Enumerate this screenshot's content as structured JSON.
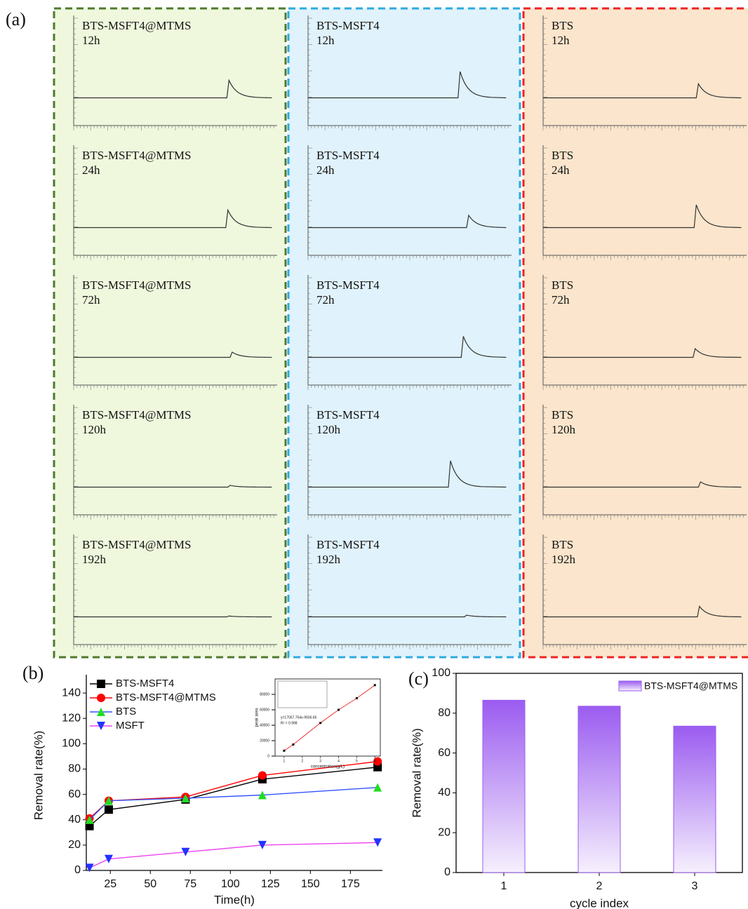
{
  "panel_labels": [
    "(a)",
    "(b)",
    "(c)"
  ],
  "panel_a": {
    "xlim": [
      0,
      19
    ],
    "ylim": [
      0,
      50
    ],
    "baseline": 5,
    "columns": [
      {
        "name": "BTS-MSFT4@MTMS",
        "color": "#4f7a2e",
        "background": "#eff8dd",
        "rows": [
          {
            "time": "12h",
            "peak_time": 14.5,
            "peak_height": 10
          },
          {
            "time": "24h",
            "peak_time": 14.4,
            "peak_height": 10
          },
          {
            "time": "72h",
            "peak_time": 14.8,
            "peak_height": 3
          },
          {
            "time": "120h",
            "peak_time": 14.6,
            "peak_height": 1
          },
          {
            "time": "192h",
            "peak_time": 14.5,
            "peak_height": 0.5
          }
        ]
      },
      {
        "name": "BTS-MSFT4",
        "color": "#2eaadf",
        "background": "#e0f2fb",
        "rows": [
          {
            "time": "12h",
            "peak_time": 14.2,
            "peak_height": 15
          },
          {
            "time": "24h",
            "peak_time": 15.0,
            "peak_height": 7
          },
          {
            "time": "72h",
            "peak_time": 14.5,
            "peak_height": 12
          },
          {
            "time": "120h",
            "peak_time": 13.3,
            "peak_height": 15
          },
          {
            "time": "192h",
            "peak_time": 14.8,
            "peak_height": 1
          }
        ]
      },
      {
        "name": "BTS",
        "color": "#ee2222",
        "background": "#fbe5cc",
        "rows": [
          {
            "time": "12h",
            "peak_time": 14.5,
            "peak_height": 8
          },
          {
            "time": "24h",
            "peak_time": 14.3,
            "peak_height": 13
          },
          {
            "time": "72h",
            "peak_time": 14.2,
            "peak_height": 5
          },
          {
            "time": "120h",
            "peak_time": 14.7,
            "peak_height": 3
          },
          {
            "time": "192h",
            "peak_time": 14.6,
            "peak_height": 6
          }
        ]
      }
    ]
  },
  "chart_data": [
    {
      "type": "line",
      "xlabel": "Time(h)",
      "ylabel": "Removal rate(%)",
      "x": [
        12,
        24,
        72,
        120,
        192
      ],
      "xlim": [
        10,
        195
      ],
      "xticks": [
        25,
        50,
        75,
        100,
        125,
        150,
        175
      ],
      "ylim": [
        0,
        150
      ],
      "yticks": [
        0,
        20,
        40,
        60,
        80,
        100,
        120,
        140
      ],
      "series": [
        {
          "name": "BTS-MSFT4",
          "color": "#000000",
          "marker_color": "#000000",
          "marker": "square",
          "values": [
            35,
            48,
            56,
            72,
            81.5
          ]
        },
        {
          "name": "BTS-MSFT4@MTMS",
          "color": "#ff0000",
          "marker_color": "#ff0000",
          "marker": "circle",
          "values": [
            41,
            55,
            58,
            75,
            86
          ]
        },
        {
          "name": "BTS",
          "color": "#3355ff",
          "marker_color": "#22dd22",
          "marker": "triangle",
          "values": [
            40,
            55,
            57,
            59.5,
            65.5
          ]
        },
        {
          "name": "MSFT",
          "color": "#ee44ee",
          "marker_color": "#2233ff",
          "marker": "down-triangle",
          "values": [
            2,
            9,
            14.5,
            20,
            22
          ]
        }
      ]
    },
    {
      "type": "inset",
      "xlabel": "concentration(g/L)",
      "ylabel": "peak area",
      "annotations": [
        "y=17057.754x-9936.65",
        "R² = 0.998"
      ],
      "x": [
        1,
        1.5,
        3,
        4,
        5,
        6
      ],
      "xlim": [
        0.5,
        6.3
      ],
      "xticks": [
        1,
        2,
        3,
        4,
        5,
        6
      ],
      "ylim": [
        0,
        100000
      ],
      "yticks": [
        0,
        20000,
        40000,
        60000,
        80000
      ],
      "series": [
        {
          "color": "#ee3333",
          "values": [
            7000,
            15000,
            43000,
            60000,
            75000,
            92000
          ]
        }
      ]
    },
    {
      "type": "bar",
      "xlabel": "cycle index",
      "ylabel": "Removal rate(%)",
      "categories": [
        "1",
        "2",
        "3"
      ],
      "ylim": [
        0,
        100
      ],
      "yticks": [
        0,
        20,
        40,
        60,
        80,
        100
      ],
      "series": [
        {
          "name": "BTS-MSFT4@MTMS",
          "color": "#9b5cf0",
          "values": [
            86.5,
            83.5,
            73.5
          ]
        }
      ]
    }
  ]
}
